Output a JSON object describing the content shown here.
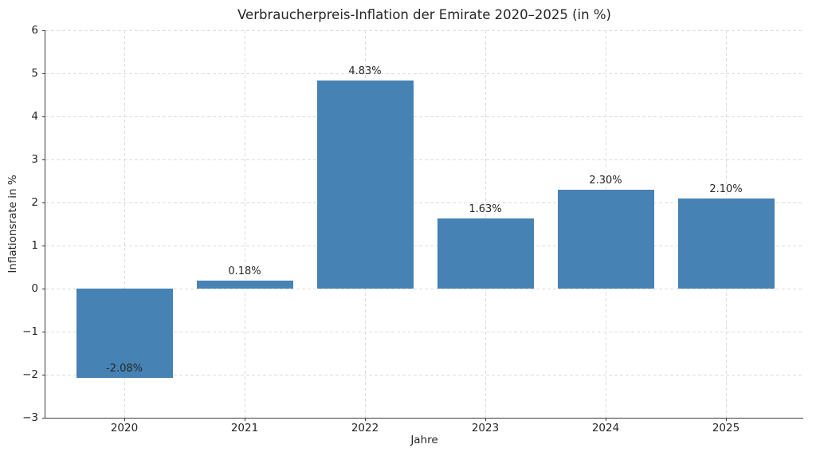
{
  "chart_data": {
    "type": "bar",
    "title": "Verbraucherpreis-Inflation der Emirate 2020–2025 (in %)",
    "xlabel": "Jahre",
    "ylabel": "Inflationsrate in %",
    "categories": [
      "2020",
      "2021",
      "2022",
      "2023",
      "2024",
      "2025"
    ],
    "values": [
      -2.08,
      0.18,
      4.83,
      1.63,
      2.3,
      2.1
    ],
    "bar_labels": [
      "-2.08%",
      "0.18%",
      "4.83%",
      "1.63%",
      "2.30%",
      "2.10%"
    ],
    "ylim": [
      -3,
      6
    ],
    "yticks": [
      -3,
      -2,
      -1,
      0,
      1,
      2,
      3,
      4,
      5,
      6
    ],
    "ytick_labels": [
      "−3",
      "−2",
      "−1",
      "0",
      "1",
      "2",
      "3",
      "4",
      "5",
      "6"
    ],
    "grid": true,
    "grid_style": "dashed",
    "legend": "none",
    "bar_color": "#4682B4",
    "background_color": "#ffffff",
    "grid_color": "#dcdcdc",
    "text_color": "#262626",
    "spine_color": "#3d3d3d"
  }
}
